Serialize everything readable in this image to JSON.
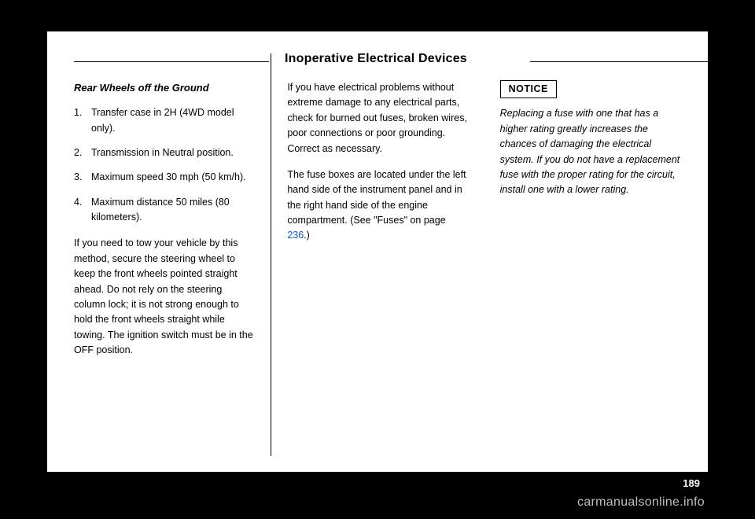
{
  "heading": "Inoperative Electrical Devices",
  "col1": {
    "subhead": "Rear Wheels off the Ground",
    "steps": [
      "Transfer case in 2H (4WD model only).",
      "Transmission in Neutral position.",
      "Maximum speed 30 mph (50 km/h).",
      "Maximum distance 50 miles (80 kilometers)."
    ],
    "para": "If you need to tow your vehicle by this method, secure the steering wheel to keep the front wheels pointed straight ahead. Do not rely on the steering column lock; it is not strong enough to hold the front wheels straight while towing. The ignition switch must be in the OFF position."
  },
  "col2": {
    "para1": "If you have electrical problems without extreme damage to any electrical parts, check for burned out fuses, broken wires, poor connections or poor grounding. Correct as necessary.",
    "para2a": "The fuse boxes are located under the left hand side of the instrument panel and in the right hand side of the engine compartment. (See \"Fuses\" on page ",
    "link": "236",
    "para2b": ".)"
  },
  "col3": {
    "notice_label": "NOTICE",
    "notice_text": "Replacing a fuse with one that has a higher rating greatly increases the chances of damaging the electrical system. If you do not have a replacement fuse with the proper rating for the circuit, install one with a lower rating."
  },
  "pagenum": "189",
  "watermark": "carmanualsonline.info"
}
